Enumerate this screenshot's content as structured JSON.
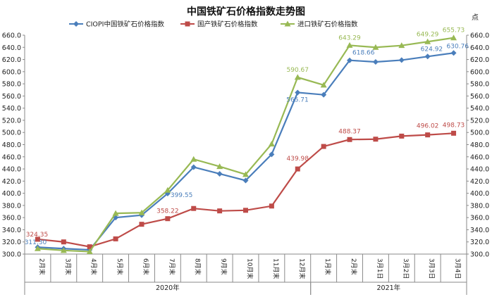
{
  "chart_data": {
    "type": "line",
    "title": "中国铁矿石价格指数走势图",
    "right_axis_unit": "点",
    "ylim": [
      300,
      660
    ],
    "ystep": 20,
    "yticks": [
      "300.0",
      "320.0",
      "340.0",
      "360.0",
      "380.0",
      "400.0",
      "420.0",
      "440.0",
      "460.0",
      "480.0",
      "500.0",
      "520.0",
      "540.0",
      "560.0",
      "580.0",
      "600.0",
      "620.0",
      "640.0",
      "660.0"
    ],
    "categories": [
      "2月末",
      "3月末",
      "4月末",
      "5月末",
      "6月末",
      "7月末",
      "8月末",
      "9月末",
      "10月末",
      "11月末",
      "12月末",
      "1月末",
      "2月末",
      "3月1日",
      "3月2日",
      "3月3日",
      "3月4日"
    ],
    "groups": [
      {
        "label": "2020年",
        "start": 0,
        "end": 10
      },
      {
        "label": "2021年",
        "start": 11,
        "end": 16
      }
    ],
    "legend_position": "top",
    "series": [
      {
        "name": "CIOPI中国铁矿石价格指数",
        "color": "#4a7ebb",
        "marker": "diamond",
        "values": [
          311.3,
          309.0,
          307.0,
          360.0,
          364.0,
          399.55,
          443.0,
          432.0,
          421.0,
          464.0,
          565.71,
          562.0,
          618.66,
          616.0,
          619.0,
          624.92,
          630.76
        ],
        "labels": {
          "0": "311.30",
          "5": "399.55",
          "10": "565.71",
          "12": "618.66",
          "15": "624.92",
          "16": "630.76"
        }
      },
      {
        "name": "国产铁矿石价格指数",
        "color": "#be4b48",
        "marker": "square",
        "values": [
          324.35,
          320.0,
          312.0,
          325.0,
          349.0,
          358.22,
          375.0,
          371.0,
          372.0,
          379.0,
          439.98,
          477.0,
          488.37,
          489.0,
          494.0,
          496.02,
          498.73
        ],
        "labels": {
          "0": "324.35",
          "5": "358.22",
          "10": "439.98",
          "12": "488.37",
          "15": "496.02",
          "16": "498.73"
        }
      },
      {
        "name": "进口铁矿石价格指数",
        "color": "#98b954",
        "marker": "triangle",
        "values": [
          309.0,
          306.0,
          304.0,
          367.0,
          368.0,
          405.0,
          456.0,
          444.0,
          431.0,
          481.0,
          590.67,
          578.0,
          643.29,
          640.0,
          643.0,
          649.29,
          655.73
        ],
        "labels": {
          "10": "590.67",
          "12": "643.29",
          "15": "649.29",
          "16": "655.73"
        }
      }
    ]
  }
}
